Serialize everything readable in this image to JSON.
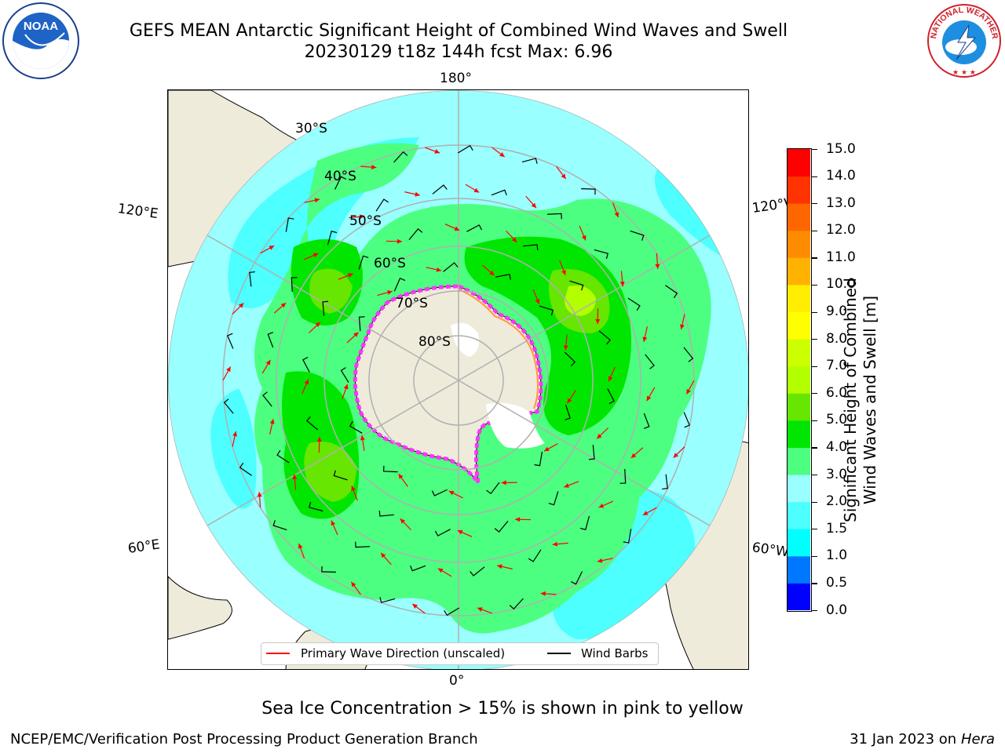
{
  "title": {
    "line1": "GEFS MEAN Antarctic Significant Height of Combined Wind Waves and Swell",
    "line2": "20230129 t18z 144h fcst   Max: 6.96"
  },
  "logos": {
    "left": {
      "text": "NOAA",
      "icon": "noaa-logo-icon"
    },
    "right": {
      "text": "NATIONAL WEATHER SERVICE",
      "icon": "nws-logo-icon"
    }
  },
  "map": {
    "projection": "south-polar-stereographic",
    "longitude_labels": {
      "top": "180°",
      "bottom": "0°",
      "upper_left": "120°E",
      "upper_right": "120°W",
      "lower_left": "60°E",
      "lower_right": "60°W"
    },
    "latitude_labels": [
      "30°S",
      "40°S",
      "50°S",
      "60°S",
      "70°S",
      "80°S"
    ],
    "land_color": "#efebdb",
    "ice_colors": [
      "#ff33ff",
      "#ff9933",
      "#ffff66"
    ]
  },
  "legend": {
    "wave_label": "Primary Wave Direction (unscaled)",
    "wave_color": "#ff0000",
    "barb_label": "Wind Barbs",
    "barb_color": "#000000"
  },
  "colorbar": {
    "title_line1": "Significant Height of Combined",
    "title_line2": "Wind Waves and Swell [m]",
    "ticks": [
      "0.0",
      "0.5",
      "1.0",
      "1.5",
      "2.0",
      "3.0",
      "4.0",
      "5.0",
      "6.0",
      "7.0",
      "8.0",
      "9.0",
      "10.0",
      "11.0",
      "12.0",
      "13.0",
      "14.0",
      "15.0"
    ],
    "colors": [
      "#0000ff",
      "#0077ff",
      "#00ffff",
      "#4dffff",
      "#99ffff",
      "#4dff80",
      "#00e600",
      "#66e600",
      "#b3ff00",
      "#ccff00",
      "#ffff00",
      "#ffee00",
      "#ffb300",
      "#ff8c00",
      "#ff6600",
      "#ff3300",
      "#ff0000"
    ]
  },
  "caption": "Sea Ice Concentration > 15% is shown in pink to yellow",
  "footer": {
    "left": "NCEP/EMC/Verification Post Processing Product Generation Branch",
    "right_date": "31 Jan 2023 on",
    "right_machine": "Hera"
  }
}
